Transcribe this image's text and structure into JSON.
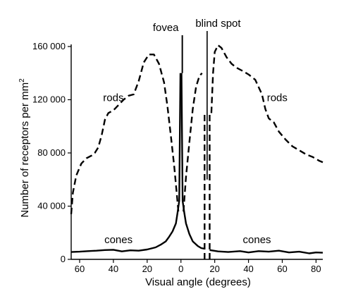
{
  "chart_data": {
    "type": "line",
    "title": "",
    "xlabel": "Visual angle (degrees)",
    "ylabel": "Number of receptors per mm²",
    "ylabel_main": "Number of receptors per mm",
    "ylabel_sup": "2",
    "xlim": [
      -65,
      84
    ],
    "ylim": [
      0,
      160000
    ],
    "x_ticks": [
      -60,
      -40,
      -20,
      0,
      20,
      40,
      60,
      80
    ],
    "x_tick_labels": [
      "60",
      "40",
      "20",
      "0",
      "20",
      "40",
      "60",
      "80"
    ],
    "y_ticks": [
      0,
      40000,
      80000,
      120000,
      160000
    ],
    "y_tick_labels": [
      "0",
      "40 000",
      "80 000",
      "120 000",
      "160 000"
    ],
    "grid": false,
    "series": [
      {
        "name": "rods",
        "style": "dashed",
        "segments": [
          {
            "x": [
              -65,
              -64,
              -62,
              -59,
              -56,
              -53,
              -51,
              -49,
              -47,
              -45,
              -43,
              -40,
              -37,
              -34,
              -31,
              -28,
              -25,
              -22,
              -19,
              -16,
              -13,
              -10,
              -8,
              -6,
              -4,
              -2.5,
              -1.5
            ],
            "y": [
              34000,
              50000,
              63000,
              72000,
              76000,
              78000,
              80000,
              84000,
              93000,
              105000,
              110000,
              112000,
              116000,
              120000,
              123000,
              124000,
              134000,
              148000,
              154000,
              154000,
              147000,
              133000,
              115000,
              93000,
              70000,
              50000,
              36000
            ]
          },
          {
            "x": [
              1.5,
              3,
              5,
              7,
              9,
              11,
              12.5
            ],
            "y": [
              36000,
              62000,
              88000,
              113000,
              130000,
              138000,
              140000
            ]
          },
          {
            "x": [
              18,
              19,
              20,
              22,
              24,
              27,
              30,
              33,
              36,
              40,
              44,
              48,
              50,
              52,
              55,
              58,
              62,
              66,
              70,
              74,
              78,
              82,
              84
            ],
            "y": [
              110000,
              140000,
              156000,
              161000,
              159000,
              152000,
              147000,
              144000,
              142000,
              139000,
              135000,
              124000,
              113000,
              106000,
              103000,
              96000,
              90000,
              85000,
              82000,
              79000,
              77000,
              74000,
              73000
            ]
          }
        ]
      },
      {
        "name": "cones",
        "style": "solid",
        "segments": [
          {
            "x": [
              -65,
              -60,
              -55,
              -50,
              -45,
              -40,
              -35,
              -30,
              -25,
              -20,
              -15,
              -12,
              -9,
              -7,
              -5,
              -3,
              -2,
              -1,
              -0.3
            ],
            "y": [
              5500,
              5800,
              6200,
              6500,
              7000,
              7200,
              6000,
              6800,
              6500,
              7400,
              9000,
              11000,
              13500,
              17000,
              21000,
              27000,
              35000,
              44000,
              140000
            ]
          },
          {
            "x": [
              0.3,
              1,
              2,
              3,
              5,
              7,
              10,
              12,
              14
            ],
            "y": [
              140000,
              44000,
              35000,
              27000,
              19000,
              13500,
              10000,
              8500,
              8000
            ]
          },
          {
            "x": [
              17,
              22,
              28,
              35,
              40,
              46,
              52,
              58,
              64,
              70,
              76,
              80,
              84
            ],
            "y": [
              7000,
              6000,
              5500,
              6200,
              5200,
              6200,
              5800,
              6500,
              5200,
              5800,
              4500,
              5200,
              5000
            ]
          }
        ]
      }
    ],
    "annotations": [
      {
        "text": "fovea",
        "x": 0
      },
      {
        "text": "blind spot",
        "x": 15
      },
      {
        "text": "rods",
        "x": -40,
        "y": 118000
      },
      {
        "text": "rods",
        "x": 57,
        "y": 118000
      },
      {
        "text": "cones",
        "x": -37,
        "y": 11000
      },
      {
        "text": "cones",
        "x": 45,
        "y": 11000
      }
    ],
    "blind_spot_lines": [
      14,
      17
    ]
  }
}
